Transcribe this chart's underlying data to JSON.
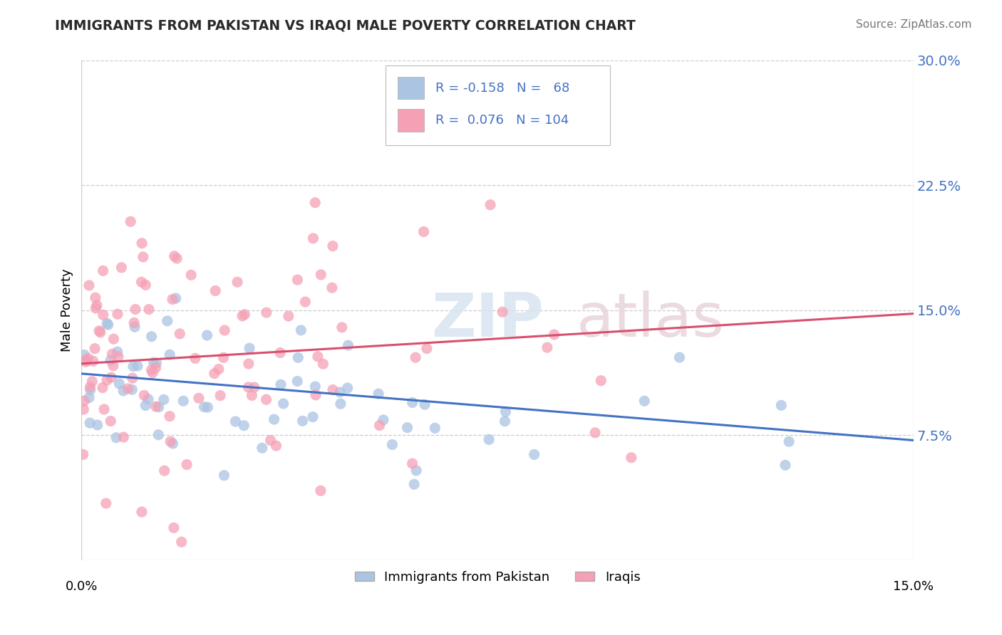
{
  "title": "IMMIGRANTS FROM PAKISTAN VS IRAQI MALE POVERTY CORRELATION CHART",
  "source": "Source: ZipAtlas.com",
  "ylabel": "Male Poverty",
  "xlim": [
    0.0,
    0.15
  ],
  "ylim": [
    0.0,
    0.3
  ],
  "right_yticks": [
    0.075,
    0.15,
    0.225,
    0.3
  ],
  "right_yticklabels": [
    "7.5%",
    "15.0%",
    "22.5%",
    "30.0%"
  ],
  "pakistan_color": "#aac4e2",
  "iraqi_color": "#f5a0b5",
  "pakistan_line_color": "#4472c4",
  "iraqi_line_color": "#d94f6e",
  "watermark_zip": "ZIP",
  "watermark_atlas": "atlas",
  "background_color": "#ffffff",
  "grid_color": "#cccccc",
  "pakistan_R": -0.158,
  "iraqi_R": 0.076,
  "pakistan_N": 68,
  "iraqi_N": 104,
  "pak_trend_start": 0.112,
  "pak_trend_end": 0.072,
  "iraqi_trend_start": 0.118,
  "iraqi_trend_end": 0.148
}
